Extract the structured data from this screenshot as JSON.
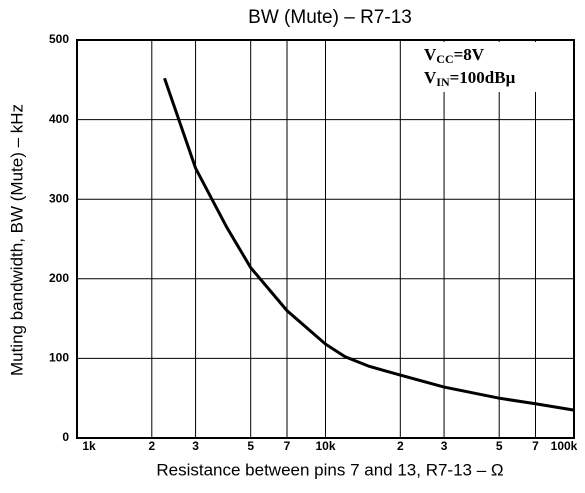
{
  "chart_data": {
    "type": "line",
    "title": "BW (Mute)  –  R7-13",
    "x_label": "Resistance between pins 7 and 13, R7-13 – Ω",
    "y_label": "Muting bandwidth, BW (Mute) – kHz",
    "annotations": [
      [
        "V",
        "CC",
        "=8V"
      ],
      [
        "V",
        "IN",
        "=100dBμ"
      ]
    ],
    "x": [
      2250,
      3000,
      4000,
      5000,
      7000,
      10000,
      12000,
      15000,
      20000,
      30000,
      50000,
      70000,
      100000
    ],
    "values": [
      452,
      339,
      265,
      214,
      160,
      118,
      102,
      90,
      79,
      64,
      50,
      43,
      35
    ],
    "color": "#000000",
    "x_log": true,
    "xlim": [
      1000,
      100000
    ],
    "xticks": [
      {
        "value": 1000,
        "label": "1k"
      },
      {
        "value": 2000,
        "label": "2"
      },
      {
        "value": 3000,
        "label": "3"
      },
      {
        "value": 5000,
        "label": "5"
      },
      {
        "value": 7000,
        "label": "7"
      },
      {
        "value": 10000,
        "label": "10k"
      },
      {
        "value": 20000,
        "label": "2"
      },
      {
        "value": 30000,
        "label": "3"
      },
      {
        "value": 50000,
        "label": "5"
      },
      {
        "value": 70000,
        "label": "7"
      },
      {
        "value": 100000,
        "label": "100k"
      }
    ],
    "ylim": [
      0,
      500
    ],
    "yticks": [
      0,
      100,
      200,
      300,
      400,
      500
    ],
    "grid": true
  }
}
